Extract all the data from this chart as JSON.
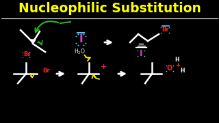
{
  "background_color": "#000000",
  "title_text": "Nucleophilic Substitution",
  "title_color": "#FFFF00",
  "title_fontsize": 13.5,
  "white": "#FFFFFF",
  "red": "#FF2222",
  "green": "#22BB22",
  "yellow": "#FFEE00",
  "purple": "#CC44CC",
  "cyan": "#44CCFF"
}
